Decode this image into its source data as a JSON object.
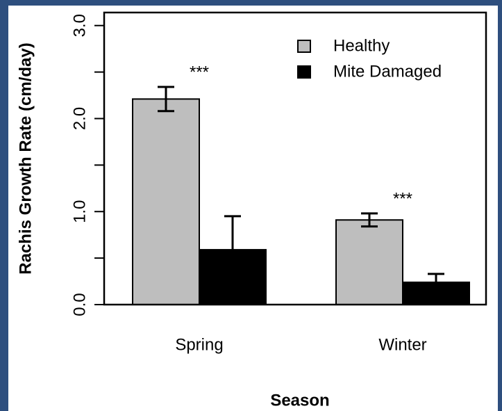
{
  "chart_data": {
    "type": "bar",
    "categories": [
      "Spring",
      "Winter"
    ],
    "series": [
      {
        "name": "Healthy",
        "color": "#bebebe",
        "values": [
          2.21,
          0.91
        ],
        "errors": [
          0.13,
          0.07
        ]
      },
      {
        "name": "Mite Damaged",
        "color": "#000000",
        "values": [
          0.59,
          0.24
        ],
        "errors": [
          0.36,
          0.09
        ]
      }
    ],
    "annotations": [
      "***",
      "***"
    ],
    "xlabel": "Season",
    "ylabel": "Rachis Growth Rate (cm/day)",
    "ylim": [
      0,
      3.14
    ],
    "yticks": [
      {
        "value": 0,
        "label": "0.0"
      },
      {
        "value": 1,
        "label": "1.0"
      },
      {
        "value": 2,
        "label": "2.0"
      },
      {
        "value": 3,
        "label": "3.0"
      }
    ],
    "yminorticks": [
      0.5,
      1.5,
      2.5
    ],
    "legend": "top-right"
  }
}
